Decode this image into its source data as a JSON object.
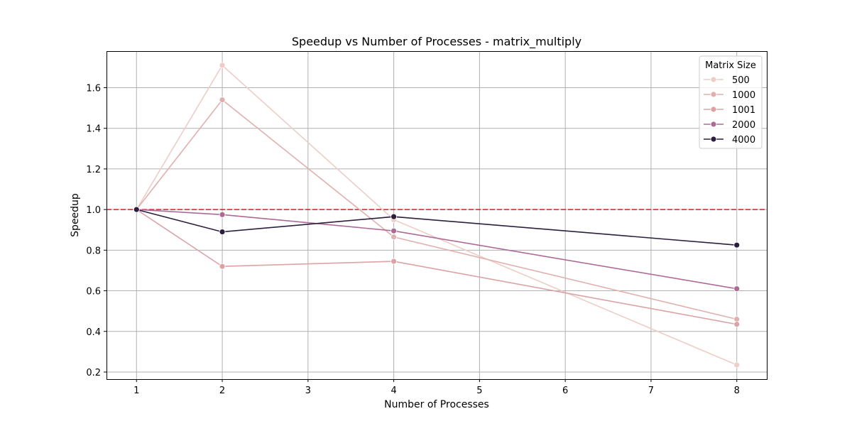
{
  "chart_data": {
    "type": "line",
    "title": "Speedup vs Number of Processes - matrix_multiply",
    "xlabel": "Number of Processes",
    "ylabel": "Speedup",
    "xlim": [
      0.65,
      8.35
    ],
    "ylim": [
      0.165,
      1.78
    ],
    "xticks": [
      1,
      2,
      3,
      4,
      5,
      6,
      7,
      8
    ],
    "xtick_labels": [
      "1",
      "2",
      "3",
      "4",
      "5",
      "6",
      "7",
      "8"
    ],
    "yticks": [
      0.2,
      0.4,
      0.6,
      0.8,
      1.0,
      1.2,
      1.4,
      1.6
    ],
    "ytick_labels": [
      "0.2",
      "0.4",
      "0.6",
      "0.8",
      "1.0",
      "1.2",
      "1.4",
      "1.6"
    ],
    "grid": true,
    "reference_line": {
      "y": 1.0,
      "style": "dashed",
      "color": "#e41a1c"
    },
    "legend": {
      "title": "Matrix Size",
      "position": "top-right"
    },
    "x": [
      1,
      2,
      4,
      8
    ],
    "series": [
      {
        "name": "500",
        "color": "#edcdc6",
        "values": [
          1.0,
          1.71,
          0.95,
          0.235
        ]
      },
      {
        "name": "1000",
        "color": "#e1b0ae",
        "values": [
          1.0,
          1.54,
          0.865,
          0.46
        ]
      },
      {
        "name": "1001",
        "color": "#dba3a5",
        "values": [
          1.0,
          0.72,
          0.745,
          0.435
        ]
      },
      {
        "name": "2000",
        "color": "#ae6a94",
        "values": [
          1.0,
          0.975,
          0.895,
          0.61
        ]
      },
      {
        "name": "4000",
        "color": "#2d1e3e",
        "values": [
          1.0,
          0.89,
          0.965,
          0.825
        ]
      }
    ]
  }
}
